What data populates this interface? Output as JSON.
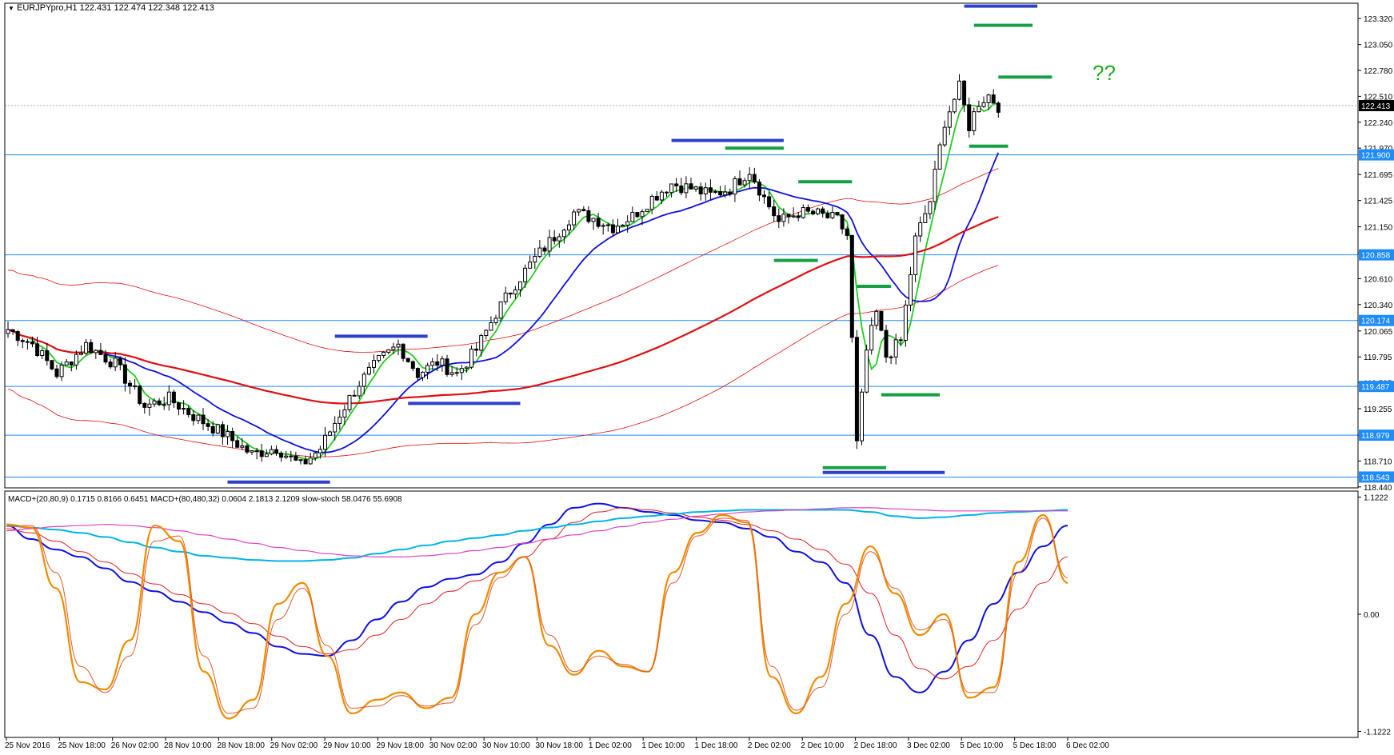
{
  "header": {
    "symbol_info": "EURJPYpro,H1  122.431 122.474 122.348 122.413",
    "indicator_info": "MACD+(20,80,9) 0.1715 0.8166 0.6451  MACD+(80,480,32) 0.0604 2.1813 2.1209  slow-stoch 58.0476 55.6908"
  },
  "annotation": "??",
  "chart_data": [
    {
      "type": "candlestick",
      "symbol": "EURJPYpro",
      "timeframe": "H1",
      "ylim": [
        118.43,
        123.48
      ],
      "price_ticks": [
        "123.320",
        "123.050",
        "122.780",
        "122.510",
        "122.240",
        "121.970",
        "121.695",
        "121.425",
        "121.150",
        "120.880",
        "120.610",
        "120.340",
        "120.065",
        "119.795",
        "119.525",
        "119.255",
        "118.980",
        "118.710",
        "118.440"
      ],
      "current_price": "122.413",
      "level_lines": [
        "121.900",
        "120.858",
        "120.174",
        "119.487",
        "118.979",
        "118.543"
      ],
      "time_labels": [
        "25 Nov 2016",
        "25 Nov 18:00",
        "26 Nov 02:00",
        "28 Nov 10:00",
        "28 Nov 18:00",
        "29 Nov 02:00",
        "29 Nov 10:00",
        "29 Nov 18:00",
        "30 Nov 02:00",
        "30 Nov 10:00",
        "30 Nov 18:00",
        "1 Dec 02:00",
        "1 Dec 10:00",
        "1 Dec 18:00",
        "2 Dec 02:00",
        "2 Dec 10:00",
        "2 Dec 18:00",
        "3 Dec 02:00",
        "5 Dec 10:00",
        "5 Dec 18:00",
        "6 Dec 02:00"
      ],
      "anchors": [
        [
          0,
          120.08
        ],
        [
          5,
          119.93
        ],
        [
          10,
          119.62
        ],
        [
          16,
          119.92
        ],
        [
          22,
          119.72
        ],
        [
          28,
          119.28
        ],
        [
          33,
          119.36
        ],
        [
          38,
          119.18
        ],
        [
          44,
          119.0
        ],
        [
          50,
          118.78
        ],
        [
          55,
          118.85
        ],
        [
          60,
          118.66
        ],
        [
          64,
          118.84
        ],
        [
          68,
          119.2
        ],
        [
          72,
          119.52
        ],
        [
          76,
          119.75
        ],
        [
          80,
          119.92
        ],
        [
          84,
          119.62
        ],
        [
          88,
          119.74
        ],
        [
          92,
          119.62
        ],
        [
          96,
          119.87
        ],
        [
          100,
          120.25
        ],
        [
          104,
          120.56
        ],
        [
          108,
          120.82
        ],
        [
          112,
          121.05
        ],
        [
          116,
          121.3
        ],
        [
          120,
          121.24
        ],
        [
          124,
          121.15
        ],
        [
          128,
          121.26
        ],
        [
          132,
          121.45
        ],
        [
          136,
          121.6
        ],
        [
          140,
          121.55
        ],
        [
          144,
          121.48
        ],
        [
          148,
          121.55
        ],
        [
          152,
          121.74
        ],
        [
          155,
          121.45
        ],
        [
          158,
          121.2
        ],
        [
          162,
          121.3
        ],
        [
          166,
          121.28
        ],
        [
          170,
          121.22
        ],
        [
          172,
          121.06
        ],
        [
          174,
          118.88
        ],
        [
          176,
          119.86
        ],
        [
          178,
          120.25
        ],
        [
          180,
          119.8
        ],
        [
          183,
          119.96
        ],
        [
          186,
          121.02
        ],
        [
          189,
          121.42
        ],
        [
          192,
          122.25
        ],
        [
          195,
          122.6
        ],
        [
          197,
          122.2
        ],
        [
          199,
          122.45
        ],
        [
          201,
          122.52
        ],
        [
          203,
          122.41
        ]
      ],
      "moving_averages": [
        {
          "name": "green fast MA",
          "color": "#22cc22"
        },
        {
          "name": "blue MA",
          "color": "#1010e0"
        },
        {
          "name": "red slow MA",
          "color": "#e01010"
        }
      ],
      "envelope_color": "#e01010",
      "marked_levels": [
        {
          "color": "#2e40c8",
          "bar_from": 196,
          "bar_to": 211,
          "price": 123.45
        },
        {
          "color": "#16a046",
          "bar_from": 198,
          "bar_to": 210,
          "price": 123.25
        },
        {
          "color": "#16a046",
          "bar_from": 203,
          "bar_to": 214,
          "price": 122.71
        },
        {
          "color": "#16a046",
          "bar_from": 197,
          "bar_to": 205,
          "price": 121.99
        },
        {
          "color": "#2e40c8",
          "bar_from": 136,
          "bar_to": 159,
          "price": 122.05
        },
        {
          "color": "#16a046",
          "bar_from": 147,
          "bar_to": 159,
          "price": 121.97
        },
        {
          "color": "#16a046",
          "bar_from": 162,
          "bar_to": 173,
          "price": 121.62
        },
        {
          "color": "#16a046",
          "bar_from": 157,
          "bar_to": 166,
          "price": 120.8
        },
        {
          "color": "#16a046",
          "bar_from": 174,
          "bar_to": 181,
          "price": 120.53
        },
        {
          "color": "#16a046",
          "bar_from": 179,
          "bar_to": 191,
          "price": 119.4
        },
        {
          "color": "#16a046",
          "bar_from": 167,
          "bar_to": 180,
          "price": 118.64
        },
        {
          "color": "#2e40c8",
          "bar_from": 167,
          "bar_to": 192,
          "price": 118.59
        },
        {
          "color": "#2e40c8",
          "bar_from": 67,
          "bar_to": 86,
          "price": 120.01
        },
        {
          "color": "#2e40c8",
          "bar_from": 82,
          "bar_to": 105,
          "price": 119.31
        },
        {
          "color": "#2e40c8",
          "bar_from": 45,
          "bar_to": 66,
          "price": 118.49
        }
      ]
    },
    {
      "type": "line",
      "title": "MACD+(20,80,9) 0.1715 0.8166 0.6451  MACD+(80,480,32) 0.0604 2.1813 2.1209  slow-stoch 58.0476 55.6908",
      "ylim": [
        -1.18,
        1.18
      ],
      "y_ticks": [
        "1.1222",
        "0.00",
        "-1.1222"
      ],
      "series": [
        {
          "name": "MACD+(20,80,9)",
          "color": "#1010e0",
          "values": [
            0.85,
            0.72,
            0.62,
            0.55,
            0.44,
            0.31,
            0.22,
            0.12,
            0.02,
            -0.08,
            -0.18,
            -0.31,
            -0.38,
            -0.4,
            -0.25,
            -0.05,
            0.12,
            0.26,
            0.34,
            0.38,
            0.5,
            0.68,
            0.86,
            1.02,
            1.06,
            1.02,
            0.98,
            0.95,
            0.9,
            0.88,
            0.82,
            0.74,
            0.6,
            0.5,
            0.3,
            -0.2,
            -0.6,
            -0.75,
            -0.55,
            -0.25,
            0.1,
            0.4,
            0.65,
            0.85
          ]
        },
        {
          "name": "signal",
          "color": "#e02020",
          "values": [
            0.82,
            0.78,
            0.7,
            0.6,
            0.5,
            0.39,
            0.29,
            0.19,
            0.1,
            0.01,
            -0.09,
            -0.21,
            -0.31,
            -0.38,
            -0.34,
            -0.2,
            -0.05,
            0.1,
            0.22,
            0.32,
            0.4,
            0.55,
            0.72,
            0.88,
            0.98,
            1.02,
            1.0,
            0.97,
            0.93,
            0.9,
            0.86,
            0.8,
            0.72,
            0.62,
            0.48,
            0.2,
            -0.2,
            -0.52,
            -0.62,
            -0.5,
            -0.25,
            0.05,
            0.3,
            0.55
          ]
        },
        {
          "name": "MACD+(80,480,32)",
          "color": "#00b4e6",
          "values": [
            0.85,
            0.83,
            0.81,
            0.78,
            0.74,
            0.69,
            0.64,
            0.6,
            0.56,
            0.54,
            0.52,
            0.51,
            0.51,
            0.52,
            0.54,
            0.58,
            0.62,
            0.66,
            0.7,
            0.73,
            0.76,
            0.8,
            0.83,
            0.86,
            0.89,
            0.92,
            0.94,
            0.96,
            0.98,
            0.99,
            1.0,
            1.0,
            1.0,
            1.0,
            1.0,
            0.98,
            0.94,
            0.92,
            0.93,
            0.95,
            0.97,
            0.98,
            0.99,
            1.0
          ]
        },
        {
          "name": "MACD+(80,480,32) signal",
          "color": "#e040c0",
          "values": [
            0.8,
            0.82,
            0.84,
            0.85,
            0.86,
            0.85,
            0.83,
            0.8,
            0.76,
            0.72,
            0.68,
            0.64,
            0.61,
            0.58,
            0.56,
            0.55,
            0.55,
            0.56,
            0.58,
            0.61,
            0.64,
            0.68,
            0.72,
            0.76,
            0.8,
            0.84,
            0.88,
            0.91,
            0.94,
            0.96,
            0.98,
            0.99,
            1.0,
            1.01,
            1.02,
            1.02,
            1.01,
            1.0,
            0.99,
            0.99,
            0.99,
            0.99,
            0.99,
            0.99
          ]
        },
        {
          "name": "slow-stoch",
          "color": "#f08c00",
          "values": [
            0.86,
            0.83,
            0.25,
            -0.65,
            -0.72,
            -0.25,
            0.85,
            0.7,
            -0.55,
            -1.0,
            -0.82,
            0.1,
            0.3,
            -0.4,
            -0.95,
            -0.82,
            -0.75,
            -0.9,
            -0.8,
            0.0,
            0.4,
            0.55,
            -0.3,
            -0.58,
            -0.35,
            -0.5,
            -0.55,
            0.4,
            0.78,
            0.95,
            0.88,
            -0.6,
            -0.95,
            -0.6,
            0.1,
            0.65,
            0.2,
            -0.2,
            0.0,
            -0.8,
            -0.7,
            0.5,
            0.95,
            0.3
          ]
        },
        {
          "name": "slow-stoch signal",
          "color": "#e05a2a",
          "values": [
            0.84,
            0.85,
            0.4,
            -0.5,
            -0.75,
            -0.4,
            0.7,
            0.75,
            -0.4,
            -0.95,
            -0.9,
            -0.05,
            0.25,
            -0.3,
            -0.9,
            -0.88,
            -0.78,
            -0.88,
            -0.85,
            -0.1,
            0.35,
            0.55,
            -0.2,
            -0.55,
            -0.4,
            -0.48,
            -0.55,
            0.3,
            0.75,
            0.92,
            0.9,
            -0.5,
            -0.92,
            -0.7,
            0.0,
            0.6,
            0.25,
            -0.15,
            -0.05,
            -0.75,
            -0.75,
            0.4,
            0.92,
            0.35
          ]
        }
      ]
    }
  ]
}
